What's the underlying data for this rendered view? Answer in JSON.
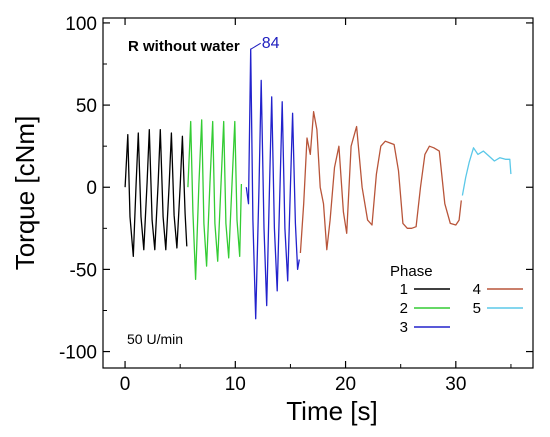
{
  "chart_data": {
    "type": "line",
    "title": "",
    "xlabel": "Time [s]",
    "ylabel": "Torque [cNm]",
    "xlim": [
      -2,
      37
    ],
    "ylim": [
      -110,
      103
    ],
    "x_ticks": [
      0,
      10,
      20,
      30
    ],
    "y_ticks": [
      -100,
      -50,
      0,
      50,
      100
    ],
    "grid": false,
    "legend_title": "Phase",
    "legend_placement": "bottom-right",
    "annotations": {
      "sample": "R without water",
      "speed": "50 U/min",
      "peak_label": "84"
    },
    "peak": {
      "x": 11.4,
      "y": 84
    },
    "series": [
      {
        "name": "1",
        "color": "#000000",
        "x": [
          0.0,
          0.25,
          0.45,
          0.75,
          1.0,
          1.2,
          1.45,
          1.7,
          2.0,
          2.2,
          2.45,
          2.7,
          3.0,
          3.2,
          3.45,
          3.7,
          4.0,
          4.2,
          4.45,
          4.7,
          5.0,
          5.2,
          5.45,
          5.6
        ],
        "y": [
          0,
          32,
          -18,
          -42,
          2,
          33,
          -18,
          -38,
          3,
          35,
          -20,
          -38,
          2,
          35,
          -18,
          -38,
          2,
          33,
          -17,
          -37,
          1,
          31,
          -16,
          -36
        ]
      },
      {
        "name": "2",
        "color": "#33cc33",
        "x": [
          5.7,
          5.95,
          6.15,
          6.4,
          6.7,
          6.95,
          7.15,
          7.4,
          7.7,
          7.95,
          8.15,
          8.4,
          8.7,
          8.95,
          9.15,
          9.4,
          9.7,
          9.95,
          10.15,
          10.4,
          10.55
        ],
        "y": [
          0,
          40,
          -15,
          -56,
          2,
          41,
          -22,
          -48,
          2,
          40,
          -22,
          -45,
          2,
          40,
          -22,
          -43,
          2,
          40,
          -20,
          -42,
          2
        ]
      },
      {
        "name": "3",
        "color": "#2222cc",
        "x": [
          11.0,
          11.2,
          11.4,
          11.6,
          11.85,
          12.15,
          12.35,
          12.6,
          12.85,
          13.1,
          13.3,
          13.55,
          13.8,
          14.05,
          14.25,
          14.5,
          14.75,
          15.0,
          15.2,
          15.45,
          15.65,
          15.8
        ],
        "y": [
          0,
          -10,
          84,
          -20,
          -80,
          0,
          65,
          -25,
          -72,
          0,
          55,
          -25,
          -63,
          0,
          52,
          -25,
          -57,
          0,
          45,
          -22,
          -50,
          -44
        ]
      },
      {
        "name": "4",
        "color": "#b8553a",
        "x": [
          15.9,
          16.2,
          16.5,
          16.8,
          17.1,
          17.4,
          17.7,
          18.0,
          18.3,
          18.6,
          19.0,
          19.4,
          19.8,
          20.1,
          20.5,
          21.0,
          21.5,
          22.0,
          22.4,
          22.8,
          23.2,
          23.6,
          24.0,
          24.4,
          24.8,
          25.2,
          25.6,
          26.0,
          26.4,
          26.8,
          27.2,
          27.6,
          28.0,
          28.5,
          29.0,
          29.5,
          30.0,
          30.3,
          30.5
        ],
        "y": [
          -40,
          -10,
          30,
          20,
          46,
          35,
          0,
          -10,
          -38,
          -20,
          12,
          25,
          -15,
          -28,
          25,
          37,
          0,
          -20,
          -23,
          8,
          25,
          28,
          27,
          26,
          10,
          -22,
          -25,
          -25,
          -24,
          0,
          20,
          25,
          24,
          22,
          -10,
          -22,
          -23,
          -20,
          -8
        ]
      },
      {
        "name": "5",
        "color": "#5bc8e8",
        "x": [
          30.6,
          30.9,
          31.2,
          31.6,
          32.0,
          32.5,
          33.0,
          33.5,
          34.0,
          34.5,
          34.9,
          35.0
        ],
        "y": [
          -5,
          6,
          15,
          24,
          20,
          22,
          19,
          16,
          18,
          17,
          17,
          8
        ]
      }
    ]
  }
}
